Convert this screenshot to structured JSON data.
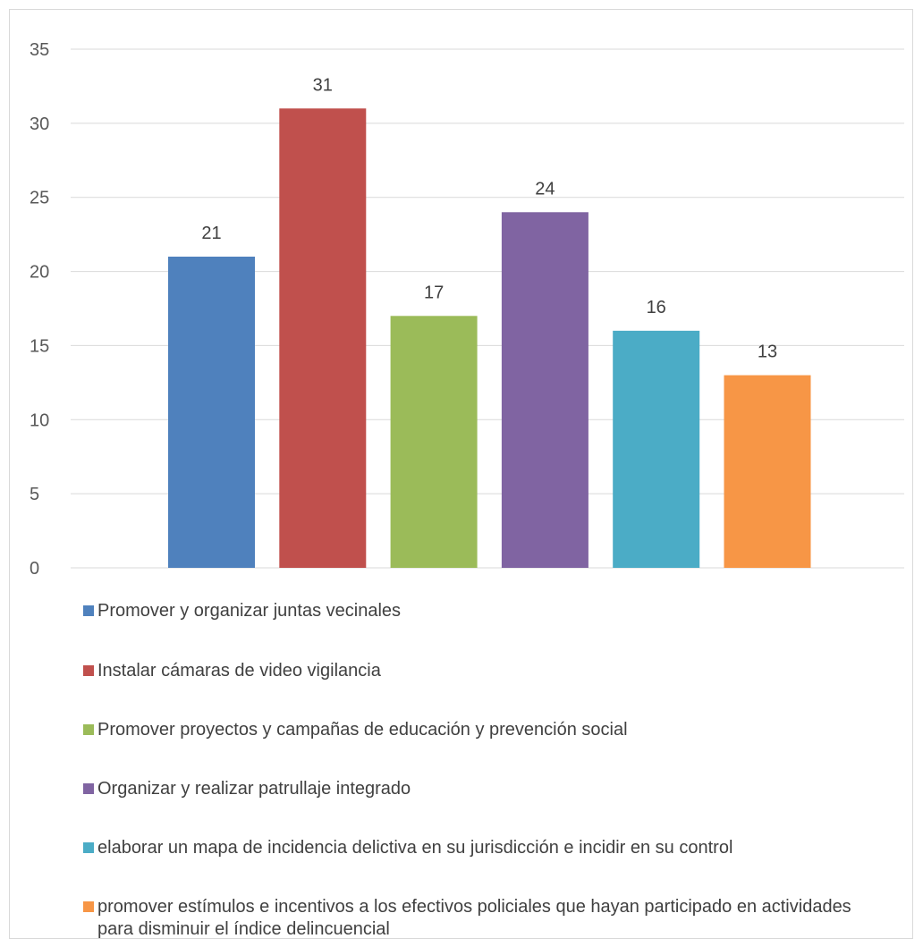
{
  "chart_data": {
    "type": "bar",
    "ylim": [
      0,
      35
    ],
    "yticks": [
      0,
      5,
      10,
      15,
      20,
      25,
      30,
      35
    ],
    "grid": true,
    "legend_position": "bottom",
    "series": [
      {
        "name": "Promover y organizar juntas vecinales",
        "value": 21,
        "color": "#4f81bd"
      },
      {
        "name": "Instalar cámaras de video vigilancia",
        "value": 31,
        "color": "#c0504d"
      },
      {
        "name": "Promover proyectos y campañas de educación y prevención social",
        "value": 17,
        "color": "#9bbb59"
      },
      {
        "name": "Organizar y realizar patrullaje integrado",
        "value": 24,
        "color": "#8064a2"
      },
      {
        "name": "elaborar un mapa de incidencia delictiva en su jurisdicción e incidir en su control",
        "value": 16,
        "color": "#4bacc6"
      },
      {
        "name": "promover estímulos e incentivos a los efectivos policiales que hayan participado en actividades para disminuir el índice delincuencial",
        "value": 13,
        "color": "#f79646"
      }
    ]
  }
}
